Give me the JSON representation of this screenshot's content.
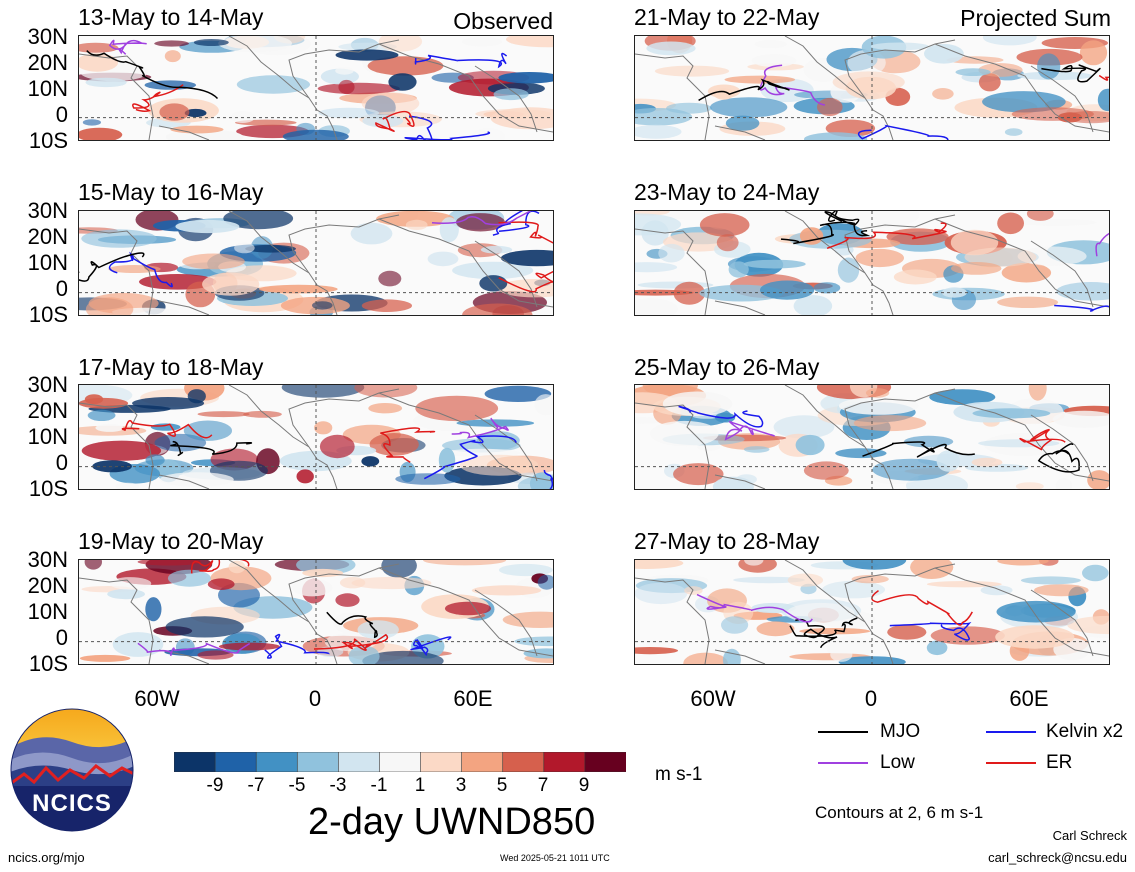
{
  "columns": {
    "left_label": "Observed",
    "right_label": "Projected Sum"
  },
  "panels_left": [
    "13-May to 14-May",
    "15-May to 16-May",
    "17-May to 18-May",
    "19-May to 20-May"
  ],
  "panels_right": [
    "21-May to 22-May",
    "23-May to 24-May",
    "25-May to 26-May",
    "27-May to 28-May"
  ],
  "lat_ticks": [
    "30N",
    "20N",
    "10N",
    "0",
    "10S"
  ],
  "lon_ticks": [
    "60W",
    "0",
    "60E"
  ],
  "legend": {
    "mjo": "MJO",
    "kelvin": "Kelvin x2",
    "low": "Low",
    "er": "ER",
    "contours_note": "Contours at 2, 6 m s-1",
    "colors": {
      "mjo": "#000000",
      "kelvin": "#1a1aee",
      "low": "#a040e0",
      "er": "#e01a1a"
    }
  },
  "colorbar": {
    "ticks": [
      "-9",
      "-7",
      "-5",
      "-3",
      "-1",
      "1",
      "3",
      "5",
      "7",
      "9"
    ],
    "colors": [
      "#0c3468",
      "#1f62a8",
      "#4291c4",
      "#90c2dd",
      "#d2e5f0",
      "#f7f7f7",
      "#fbd9c6",
      "#f3a481",
      "#d6604d",
      "#b2182b",
      "#67001f"
    ],
    "units": "m s-1"
  },
  "title": "2-day UWND850",
  "logo_text": "NCICS",
  "footer": {
    "url": "ncics.org/mjo",
    "timestamp": "Wed 2025-05-21 1011 UTC",
    "author": "Carl Schreck",
    "email": "carl_schreck@ncsu.edu"
  }
}
